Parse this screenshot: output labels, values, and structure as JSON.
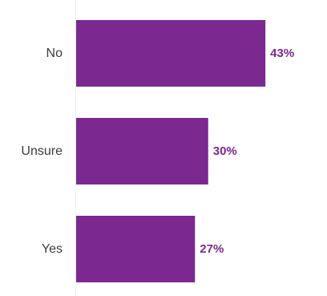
{
  "chart_data": {
    "type": "bar",
    "orientation": "horizontal",
    "categories": [
      "No",
      "Unsure",
      "Yes"
    ],
    "values": [
      43,
      30,
      27
    ],
    "value_labels": [
      "43%",
      "30%",
      "27%"
    ],
    "unit": "%",
    "xlim": [
      0,
      61
    ],
    "title": "",
    "xlabel": "",
    "ylabel": "",
    "grid": false,
    "legend": "none",
    "colors": {
      "bar": "#7b2890",
      "value_label": "#7b2890",
      "category_label": "#3a3a3a",
      "axis_line": "#ececec"
    }
  }
}
